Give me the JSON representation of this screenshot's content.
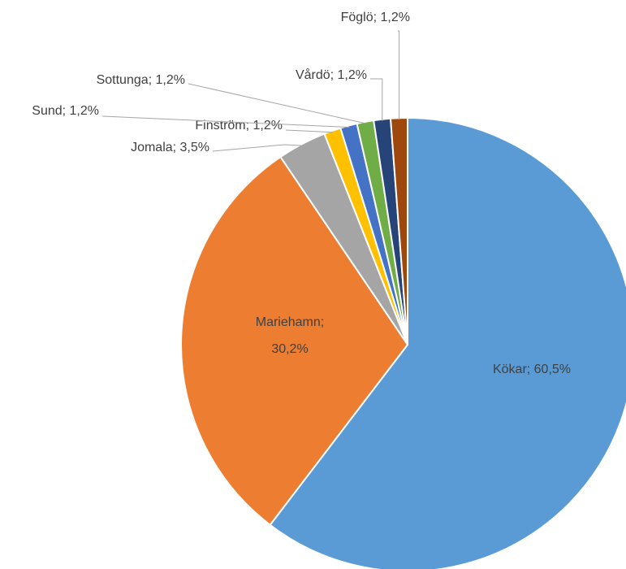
{
  "chart_data": {
    "type": "pie",
    "categories": [
      "Kökar",
      "Mariehamn",
      "Jomala",
      "Finström",
      "Sund",
      "Sottunga",
      "Vårdö",
      "Föglö"
    ],
    "values": [
      60.5,
      30.2,
      3.5,
      1.2,
      1.2,
      1.2,
      1.2,
      1.2
    ],
    "value_labels": [
      "Kökar; 60,5%",
      [
        "Mariehamn;",
        "30,2%"
      ],
      "Jomala; 3,5%",
      "Finström; 1,2%",
      "Sund; 1,2%",
      "Sottunga; 1,2%",
      "Vårdö; 1,2%",
      "Föglö; 1,2%"
    ],
    "colors": [
      "#5b9bd5",
      "#ed7d31",
      "#a5a5a5",
      "#ffc000",
      "#4472c4",
      "#70ad47",
      "#264478",
      "#9e480e"
    ]
  }
}
